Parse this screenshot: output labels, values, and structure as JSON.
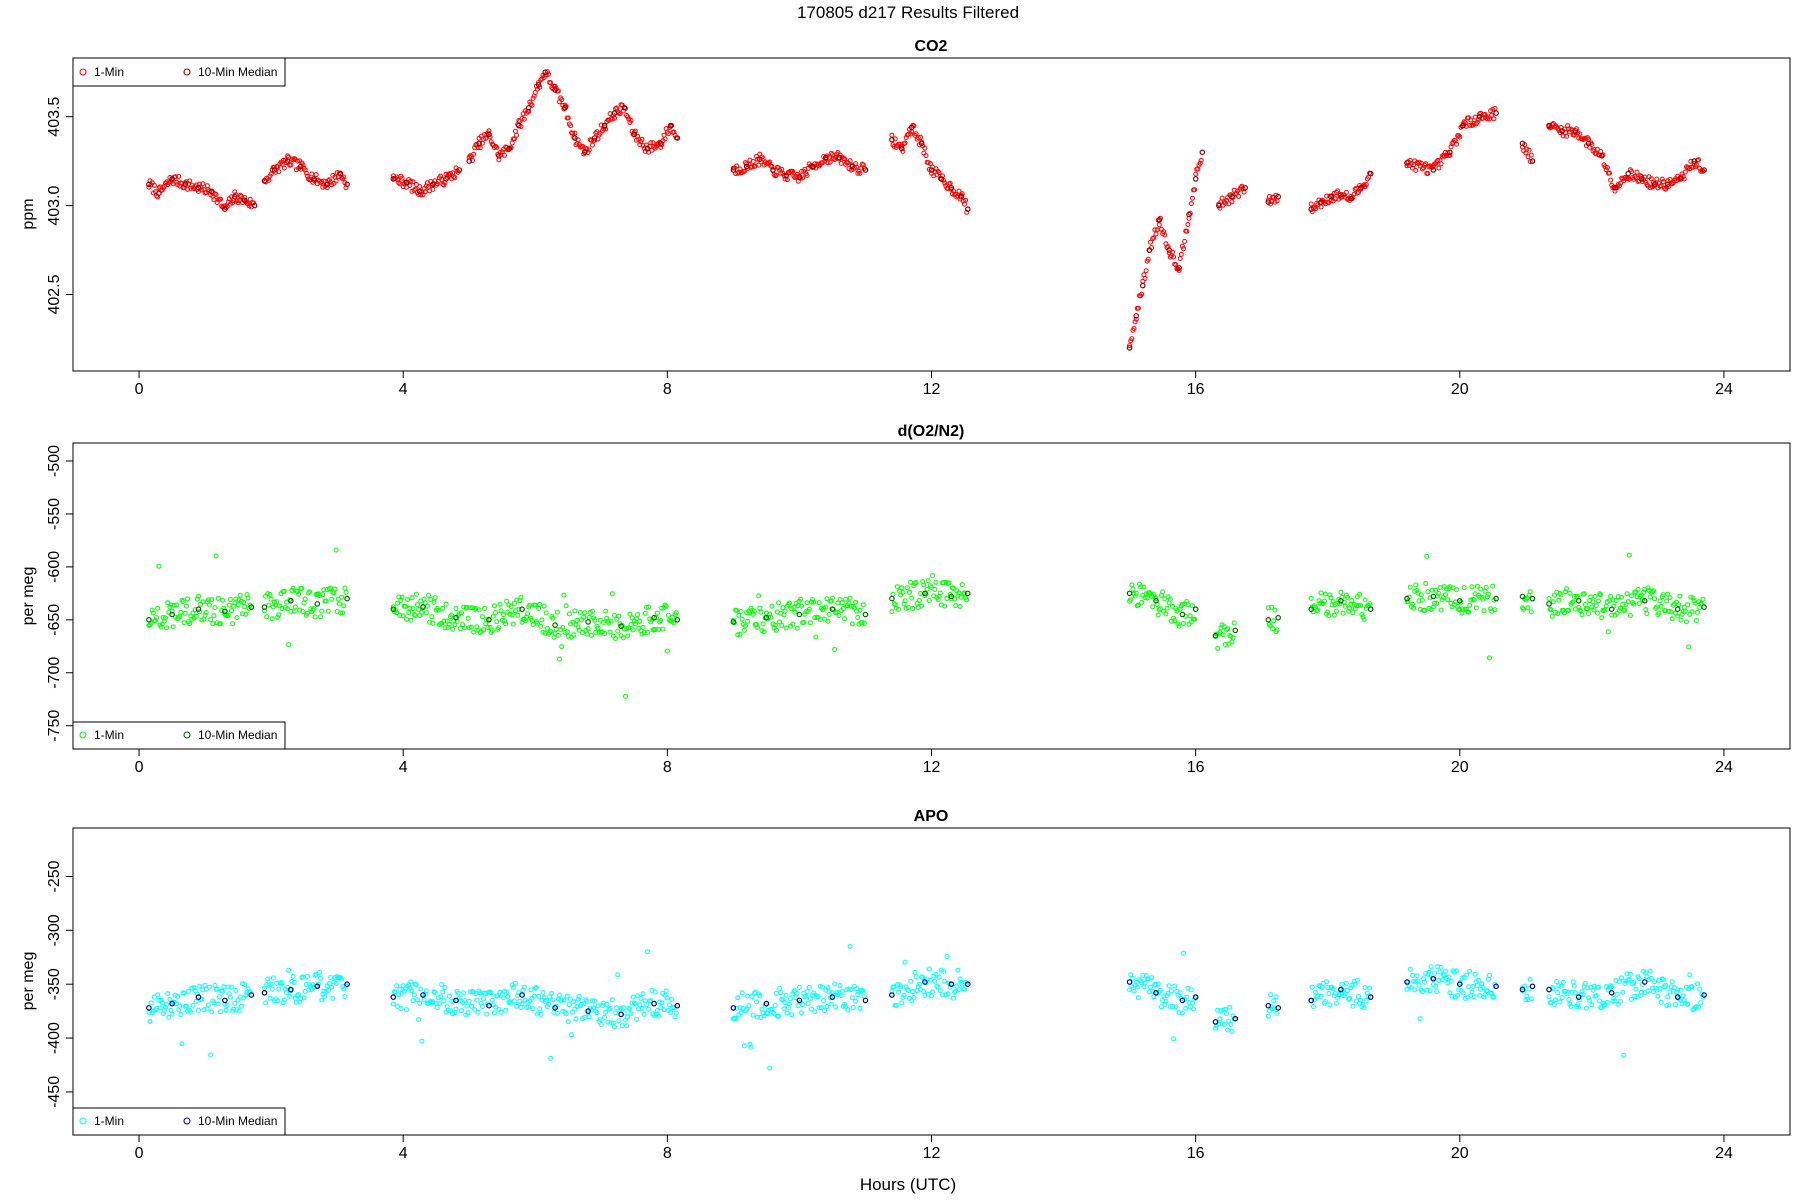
{
  "figure": {
    "title": "170805   d217   Results Filtered",
    "xlabel": "Hours (UTC)"
  },
  "chart_data": [
    {
      "type": "scatter",
      "title": "CO2",
      "xlabel": "",
      "ylabel": "ppm",
      "xlim": [
        -1.0,
        25.0
      ],
      "ylim": [
        402.07,
        403.83
      ],
      "xticks": [
        0,
        4,
        8,
        12,
        16,
        20,
        24
      ],
      "yticks": [
        402.5,
        403.0,
        403.5
      ],
      "ytick_labels": [
        "402.5",
        "403.0",
        "403.5"
      ],
      "grid": false,
      "legend_position": "top-left",
      "legend": [
        "1-Min",
        "10-Min Median"
      ],
      "colors": {
        "raw": "#ff0000",
        "median": "#8b0000"
      },
      "segments": [
        {
          "x": [
            0.15,
            0.3,
            0.5,
            0.7,
            0.9,
            1.1,
            1.3,
            1.45,
            1.6,
            1.75
          ],
          "y": [
            403.12,
            403.07,
            403.15,
            403.12,
            403.1,
            403.08,
            402.98,
            403.05,
            403.03,
            403.0
          ]
        },
        {
          "x": [
            1.9,
            2.05,
            2.25,
            2.45,
            2.65,
            2.85,
            3.05,
            3.15
          ],
          "y": [
            403.14,
            403.2,
            403.25,
            403.22,
            403.15,
            403.12,
            403.18,
            403.12
          ]
        },
        {
          "x": [
            3.85,
            4.05,
            4.25,
            4.45,
            4.65,
            4.85
          ],
          "y": [
            403.15,
            403.13,
            403.08,
            403.12,
            403.15,
            403.2
          ]
        },
        {
          "x": [
            5.0,
            5.15,
            5.3,
            5.45,
            5.6,
            5.75,
            5.9,
            6.05,
            6.15,
            6.3,
            6.45,
            6.6,
            6.75,
            6.9,
            7.05,
            7.2,
            7.35,
            7.5,
            7.7,
            7.9,
            8.05,
            8.15
          ],
          "y": [
            403.25,
            403.35,
            403.4,
            403.28,
            403.32,
            403.45,
            403.55,
            403.68,
            403.75,
            403.65,
            403.55,
            403.38,
            403.3,
            403.38,
            403.45,
            403.52,
            403.55,
            403.4,
            403.32,
            403.35,
            403.45,
            403.38
          ]
        },
        {
          "x": [
            9.0,
            9.2,
            9.4,
            9.6,
            9.8,
            10.0,
            10.2,
            10.4,
            10.6,
            10.8,
            11.0
          ],
          "y": [
            403.2,
            403.22,
            403.26,
            403.2,
            403.17,
            403.16,
            403.22,
            403.27,
            403.27,
            403.22,
            403.2
          ]
        },
        {
          "x": [
            11.4,
            11.55,
            11.7,
            11.85,
            12.0,
            12.15,
            12.3,
            12.45,
            12.55
          ],
          "y": [
            403.37,
            403.32,
            403.44,
            403.35,
            403.2,
            403.15,
            403.1,
            403.05,
            402.98
          ]
        },
        {
          "x": [
            15.0,
            15.1,
            15.2,
            15.3,
            15.45,
            15.6,
            15.75,
            15.9,
            16.0,
            16.1
          ],
          "y": [
            402.2,
            402.38,
            402.55,
            402.75,
            402.92,
            402.75,
            402.65,
            402.95,
            403.15,
            403.3
          ]
        },
        {
          "x": [
            16.35,
            16.55,
            16.75
          ],
          "y": [
            403.0,
            403.05,
            403.1
          ]
        },
        {
          "x": [
            17.1,
            17.25
          ],
          "y": [
            403.02,
            403.05
          ]
        },
        {
          "x": [
            17.75,
            17.9,
            18.05,
            18.2,
            18.35,
            18.5,
            18.65
          ],
          "y": [
            402.98,
            403.02,
            403.05,
            403.06,
            403.04,
            403.1,
            403.18
          ]
        },
        {
          "x": [
            19.2,
            19.6,
            19.85,
            20.05,
            20.3,
            20.55
          ],
          "y": [
            403.24,
            403.2,
            403.3,
            403.45,
            403.5,
            403.52
          ]
        },
        {
          "x": [
            20.95,
            21.1
          ],
          "y": [
            403.35,
            403.25
          ]
        },
        {
          "x": [
            21.35,
            21.55,
            21.75,
            21.95,
            22.15,
            22.35,
            22.55,
            22.75,
            22.95,
            23.15,
            23.35,
            23.55,
            23.7
          ],
          "y": [
            403.45,
            403.42,
            403.42,
            403.35,
            403.28,
            403.1,
            403.18,
            403.15,
            403.12,
            403.12,
            403.15,
            403.25,
            403.2
          ]
        }
      ]
    },
    {
      "type": "scatter",
      "title": "d(O2/N2)",
      "xlabel": "",
      "ylabel": "per meg",
      "xlim": [
        -1.0,
        25.0
      ],
      "ylim": [
        -772,
        -483
      ],
      "xticks": [
        0,
        4,
        8,
        12,
        16,
        20,
        24
      ],
      "yticks": [
        -750,
        -700,
        -650,
        -600,
        -550,
        -500
      ],
      "ytick_labels": [
        "-750",
        "-700",
        "-650",
        "-600",
        "-550",
        "-500"
      ],
      "grid": false,
      "legend_position": "bottom-left",
      "legend": [
        "1-Min",
        "10-Min Median"
      ],
      "colors": {
        "raw": "#00ff00",
        "median": "#006400"
      },
      "segments": [
        {
          "x": [
            0.15,
            0.5,
            0.9,
            1.3,
            1.7
          ],
          "y": [
            -650,
            -645,
            -640,
            -642,
            -638
          ]
        },
        {
          "x": [
            1.9,
            2.3,
            2.7,
            3.15
          ],
          "y": [
            -638,
            -632,
            -635,
            -630
          ]
        },
        {
          "x": [
            3.85,
            4.3,
            4.8,
            5.3,
            5.8,
            6.3,
            6.8,
            7.3,
            7.8,
            8.15
          ],
          "y": [
            -640,
            -638,
            -648,
            -650,
            -640,
            -655,
            -652,
            -656,
            -648,
            -650
          ]
        },
        {
          "x": [
            9.0,
            9.5,
            10.0,
            10.5,
            11.0
          ],
          "y": [
            -652,
            -648,
            -645,
            -640,
            -645
          ]
        },
        {
          "x": [
            11.4,
            11.9,
            12.3,
            12.55
          ],
          "y": [
            -630,
            -625,
            -628,
            -625
          ]
        },
        {
          "x": [
            15.0,
            15.4,
            15.8,
            16.0
          ],
          "y": [
            -625,
            -632,
            -645,
            -640
          ]
        },
        {
          "x": [
            16.3,
            16.6
          ],
          "y": [
            -665,
            -660
          ]
        },
        {
          "x": [
            17.1,
            17.25
          ],
          "y": [
            -650,
            -648
          ]
        },
        {
          "x": [
            17.75,
            18.2,
            18.65
          ],
          "y": [
            -640,
            -632,
            -640
          ]
        },
        {
          "x": [
            19.2,
            19.6,
            20.0,
            20.55
          ],
          "y": [
            -630,
            -628,
            -632,
            -630
          ]
        },
        {
          "x": [
            20.95,
            21.1
          ],
          "y": [
            -628,
            -630
          ]
        },
        {
          "x": [
            21.35,
            21.8,
            22.3,
            22.8,
            23.3,
            23.7
          ],
          "y": [
            -635,
            -632,
            -640,
            -632,
            -640,
            -638
          ]
        }
      ]
    },
    {
      "type": "scatter",
      "title": "APO",
      "xlabel": "",
      "ylabel": "per meg",
      "xlim": [
        -1.0,
        25.0
      ],
      "ylim": [
        -490,
        -205
      ],
      "xticks": [
        0,
        4,
        8,
        12,
        16,
        20,
        24
      ],
      "yticks": [
        -450,
        -400,
        -350,
        -300,
        -250
      ],
      "ytick_labels": [
        "-450",
        "-400",
        "-350",
        "-300",
        "-250"
      ],
      "grid": false,
      "legend_position": "bottom-left",
      "legend": [
        "1-Min",
        "10-Min Median"
      ],
      "colors": {
        "raw": "#00ffff",
        "median": "#000080"
      },
      "segments": [
        {
          "x": [
            0.15,
            0.5,
            0.9,
            1.3,
            1.7
          ],
          "y": [
            -372,
            -368,
            -362,
            -365,
            -360
          ]
        },
        {
          "x": [
            1.9,
            2.3,
            2.7,
            3.15
          ],
          "y": [
            -358,
            -355,
            -352,
            -350
          ]
        },
        {
          "x": [
            3.85,
            4.3,
            4.8,
            5.3,
            5.8,
            6.3,
            6.8,
            7.3,
            7.8,
            8.15
          ],
          "y": [
            -362,
            -360,
            -365,
            -370,
            -360,
            -372,
            -375,
            -378,
            -368,
            -370
          ]
        },
        {
          "x": [
            9.0,
            9.5,
            10.0,
            10.5,
            11.0
          ],
          "y": [
            -372,
            -368,
            -365,
            -362,
            -365
          ]
        },
        {
          "x": [
            11.4,
            11.9,
            12.3,
            12.55
          ],
          "y": [
            -360,
            -348,
            -350,
            -350
          ]
        },
        {
          "x": [
            15.0,
            15.4,
            15.8,
            16.0
          ],
          "y": [
            -348,
            -358,
            -365,
            -362
          ]
        },
        {
          "x": [
            16.3,
            16.6
          ],
          "y": [
            -385,
            -382
          ]
        },
        {
          "x": [
            17.1,
            17.25
          ],
          "y": [
            -370,
            -372
          ]
        },
        {
          "x": [
            17.75,
            18.2,
            18.65
          ],
          "y": [
            -365,
            -355,
            -362
          ]
        },
        {
          "x": [
            19.2,
            19.6,
            20.0,
            20.55
          ],
          "y": [
            -348,
            -345,
            -350,
            -352
          ]
        },
        {
          "x": [
            20.95,
            21.1
          ],
          "y": [
            -355,
            -352
          ]
        },
        {
          "x": [
            21.35,
            21.8,
            22.3,
            22.8,
            23.3,
            23.7
          ],
          "y": [
            -355,
            -362,
            -358,
            -348,
            -362,
            -360
          ]
        }
      ]
    }
  ]
}
